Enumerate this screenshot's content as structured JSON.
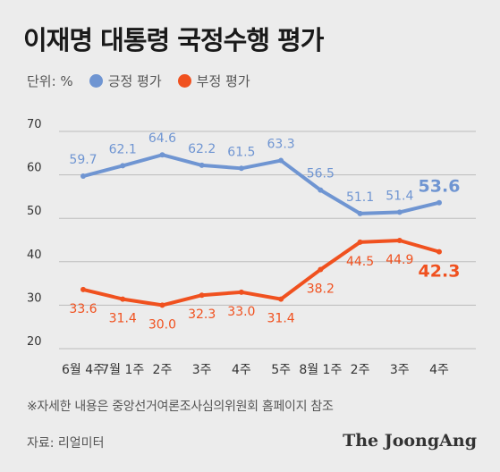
{
  "title": "이재명 대통령 국정수행 평가",
  "footnote": "※자세한 내용은 중앙선거여론조사심의위원회 홈페이지 참조",
  "source": "자료: 리얼미터",
  "brand": "The JoongAng",
  "colors": {
    "positive": "#6f95d2",
    "negative": "#f0511f",
    "grid": "#bdbdbd",
    "axis_text": "#333333"
  },
  "chart_data": {
    "type": "line",
    "unit_label": "단위: %",
    "categories": [
      "6월 4주",
      "7월 1주",
      "2주",
      "3주",
      "4주",
      "5주",
      "8월 1주",
      "2주",
      "3주",
      "4주"
    ],
    "ylim": [
      20,
      70
    ],
    "yticks": [
      20,
      30,
      40,
      50,
      60,
      70
    ],
    "grid": true,
    "legend_position": "top-left",
    "series": [
      {
        "name": "긍정 평가",
        "key": "positive",
        "values": [
          59.7,
          62.1,
          64.6,
          62.2,
          61.5,
          63.3,
          56.5,
          51.1,
          51.4,
          53.6
        ]
      },
      {
        "name": "부정 평가",
        "key": "negative",
        "values": [
          33.6,
          31.4,
          30.0,
          32.3,
          33.0,
          31.4,
          38.2,
          44.5,
          44.9,
          42.3
        ]
      }
    ]
  }
}
